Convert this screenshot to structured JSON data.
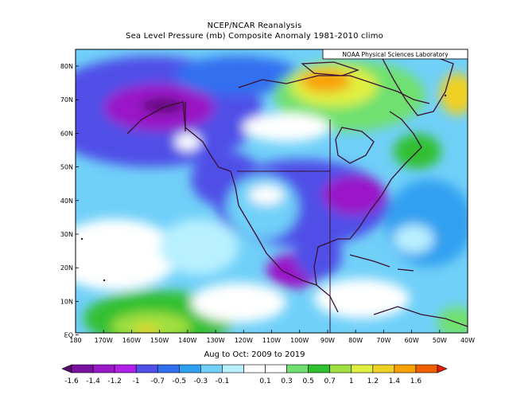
{
  "title": {
    "line1": "NCEP/NCAR Reanalysis",
    "line2": "Sea Level Pressure (mb) Composite Anomaly 1981-2010 climo"
  },
  "credit": "NOAA Physical Sciences Laboratory",
  "period": "Aug to Oct: 2009 to 2019",
  "lat_labels": [
    "80N",
    "70N",
    "60N",
    "50N",
    "40N",
    "30N",
    "20N",
    "10N",
    "EQ"
  ],
  "lon_labels": [
    "180",
    "170W",
    "160W",
    "150W",
    "140W",
    "130W",
    "120W",
    "110W",
    "100W",
    "90W",
    "80W",
    "70W",
    "60W",
    "50W",
    "40W"
  ],
  "colorbar": {
    "labels": [
      "-1.6",
      "-1.4",
      "-1.2",
      "-1",
      "-0.7",
      "-0.5",
      "-0.3",
      "-0.1",
      "0.1",
      "0.3",
      "0.5",
      "0.7",
      "1",
      "1.2",
      "1.4",
      "1.6"
    ],
    "colors": [
      "#5a0a6e",
      "#7a10a0",
      "#9a18c8",
      "#b020e8",
      "#5050e8",
      "#3070f0",
      "#30a0f0",
      "#70d0f8",
      "#b8f0ff",
      "#ffffff",
      "#ffffff",
      "#70e070",
      "#30c030",
      "#a0e040",
      "#e0f040",
      "#f0d020",
      "#f8a000",
      "#f06000",
      "#e02000"
    ]
  }
}
